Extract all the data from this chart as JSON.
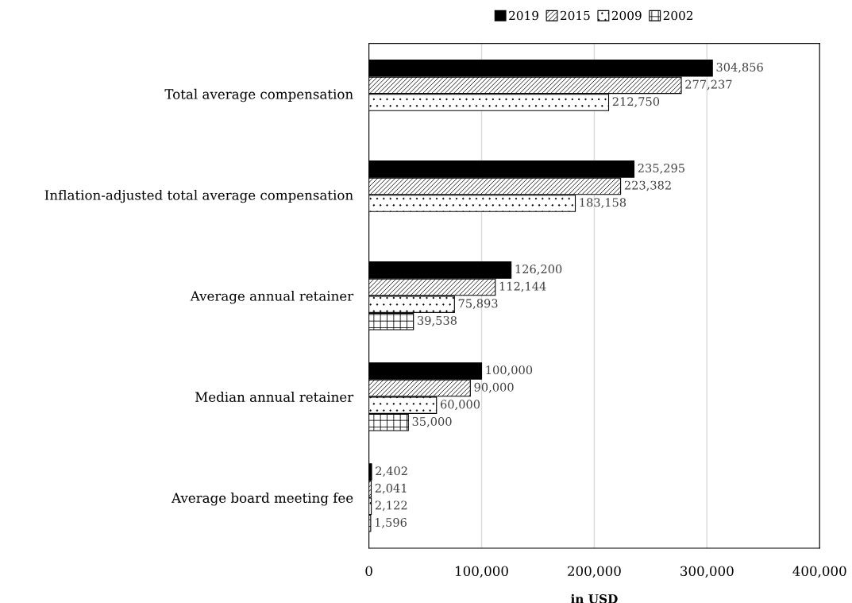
{
  "chart_data": {
    "type": "bar",
    "orientation": "horizontal",
    "xlabel": "in USD",
    "categories": [
      "Total average compensation",
      "Inflation-adjusted total average compensation",
      "Average annual retainer",
      "Median annual retainer",
      "Average board meeting fee"
    ],
    "series": [
      {
        "name": "2019",
        "color": "#000000",
        "values": [
          304856,
          235295,
          126200,
          100000,
          2402
        ],
        "value_labels": [
          "304,856",
          "235,295",
          "126,200",
          "100,000",
          "2,402"
        ]
      },
      {
        "name": "2015",
        "color": "#000000",
        "values": [
          277237,
          223382,
          112144,
          90000,
          2041
        ],
        "value_labels": [
          "277,237",
          "223,382",
          "112,144",
          "90,000",
          "2,041"
        ]
      },
      {
        "name": "2009",
        "color": "#000000",
        "values": [
          212750,
          183158,
          75893,
          60000,
          2122
        ],
        "value_labels": [
          "212,750",
          "183,158",
          "75,893",
          "60,000",
          "2,122"
        ]
      },
      {
        "name": "2002",
        "color": "#000000",
        "values": [
          null,
          null,
          39538,
          35000,
          1596
        ],
        "value_labels": [
          null,
          null,
          "39,538",
          "35,000",
          "1,596"
        ]
      }
    ],
    "xlim": [
      0,
      400000
    ],
    "xticks": [
      0,
      {
        "value": 100000,
        "label": "100,000"
      },
      {
        "value": 200000,
        "label": "200,000"
      },
      {
        "value": 300000,
        "label": "300,000"
      },
      {
        "value": 400000,
        "label": "400,000"
      }
    ],
    "grid": "x",
    "legend": "top"
  }
}
